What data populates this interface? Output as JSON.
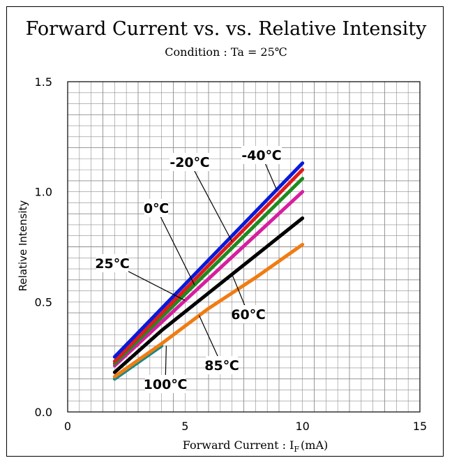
{
  "chart_data": {
    "type": "line",
    "title": "Forward Current vs. vs. Relative Intensity",
    "subtitle": "Condition : Ta = 25℃",
    "xlabel": "Forward Current :  I",
    "xlabel_sub": "F",
    "xlabel_unit": "(mA)",
    "ylabel": "Relative Intensity",
    "xlim": [
      0,
      15
    ],
    "ylim": [
      0,
      1.5
    ],
    "xticks": [
      "0",
      "5",
      "10",
      "15"
    ],
    "yticks": [
      "0.0",
      "0.5",
      "1.0",
      "1.5"
    ],
    "grid": true,
    "series": [
      {
        "name": "-40℃",
        "color": "#0a1ad8",
        "x": [
          2,
          10
        ],
        "y": [
          0.25,
          1.13
        ]
      },
      {
        "name": "-20℃",
        "color": "#e01b1b",
        "x": [
          2,
          10
        ],
        "y": [
          0.23,
          1.1
        ]
      },
      {
        "name": "0℃",
        "color": "#1f8a1f",
        "x": [
          2,
          10
        ],
        "y": [
          0.22,
          1.06
        ]
      },
      {
        "name": "25℃",
        "color": "#d61ea0",
        "x": [
          2,
          10
        ],
        "y": [
          0.21,
          1.0
        ]
      },
      {
        "name": "60℃",
        "color": "#000000",
        "x": [
          2,
          4,
          6,
          8,
          10
        ],
        "y": [
          0.18,
          0.37,
          0.54,
          0.71,
          0.88
        ]
      },
      {
        "name": "85℃",
        "color": "#f07c12",
        "x": [
          2,
          4,
          6,
          8,
          10
        ],
        "y": [
          0.16,
          0.31,
          0.47,
          0.61,
          0.76
        ]
      },
      {
        "name": "100℃",
        "color": "#138a8a",
        "x": [
          2,
          4
        ],
        "y": [
          0.15,
          0.3
        ]
      }
    ],
    "annotations": [
      {
        "text": "-40℃",
        "series": 0,
        "x": 8.9
      },
      {
        "text": "-20℃",
        "series": 1,
        "x": 7.0
      },
      {
        "text": "0℃",
        "series": 2,
        "x": 5.4
      },
      {
        "text": "25℃",
        "series": 3,
        "x": 5.0
      },
      {
        "text": "60℃",
        "series": 4,
        "x": 7.0
      },
      {
        "text": "85℃",
        "series": 5,
        "x": 5.6
      },
      {
        "text": "100℃",
        "series": 6,
        "x": 4.2
      }
    ]
  }
}
